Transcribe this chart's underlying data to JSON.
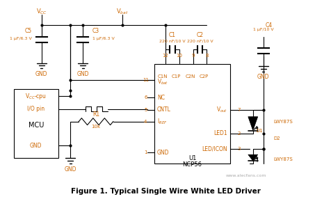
{
  "title": "Figure 1. Typical Single Wire White LED Driver",
  "bg_color": "#ffffff",
  "text_color": "#000000",
  "orange_color": "#cc6600",
  "line_color": "#000000",
  "watermark_text": "www.alecfans.com",
  "ic_label": "U1",
  "ic_model": "NCP56",
  "fig_width": 4.76,
  "fig_height": 2.86,
  "dpi": 100
}
